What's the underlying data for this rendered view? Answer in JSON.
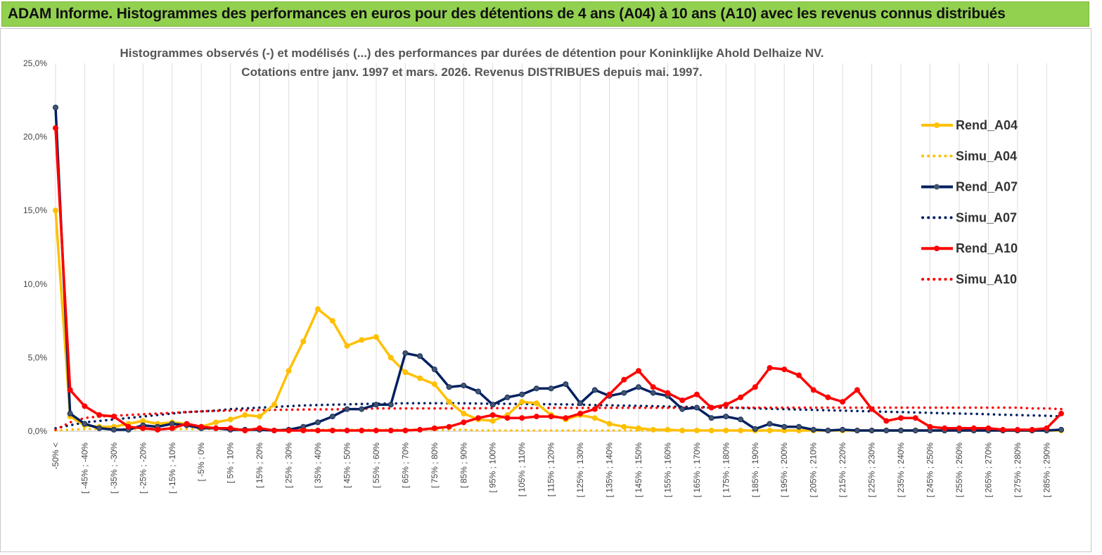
{
  "header": {
    "title": "ADAM Informe. Histogrammes des performances en euros pour des détentions de 4 ans (A04) à 10 ans (A10) avec les revenus connus distribués"
  },
  "chart_data": {
    "type": "line",
    "title_line1": "Histogrammes observés (-) et modélisés (...) des performances par durées de détention pour Koninklijke Ahold Delhaize NV.",
    "title_line2": "Cotations entre janv. 1997 et mars. 2026. Revenus DISTRIBUES depuis mai. 1997.",
    "ylim": [
      0,
      25
    ],
    "yticks": [
      "0,0%",
      "5,0%",
      "10,0%",
      "15,0%",
      "20,0%",
      "25,0%"
    ],
    "xticks": [
      "-50% <",
      "[ -45% ; -40%",
      "[ -35% ; -30%",
      "[ -25% ; -20%",
      "[ -15% ; -10%",
      "[ -5% ; 0%",
      "[ 5% ; 10%",
      "[ 15% ; 20%",
      "[ 25% ; 30%",
      "[ 35% ; 40%",
      "[ 45% ; 50%",
      "[ 55% ; 60%",
      "[ 65% ; 70%",
      "[ 75% ; 80%",
      "[ 85% ; 90%",
      "[ 95% ; 100%",
      "[ 105% ; 110%",
      "[ 115% ; 120%",
      "[ 125% ; 130%",
      "[ 135% ; 140%",
      "[ 145% ; 150%",
      "[ 155% ; 160%",
      "[ 165% ; 170%",
      "[ 175% ; 180%",
      "[ 185% ; 190%",
      "[ 195% ; 200%",
      "[ 205% ; 210%",
      "[ 215% ; 220%",
      "[ 225% ; 230%",
      "[ 235% ; 240%",
      "[ 245% ; 250%",
      "[ 255% ; 260%",
      "[ 265% ; 270%",
      "[ 275% ; 280%",
      "[ 285% ; 290%"
    ],
    "series": [
      {
        "name": "Rend_A04",
        "style": "solid",
        "color": "#ffc000",
        "values": [
          15.0,
          1.0,
          0.4,
          0.3,
          0.3,
          0.5,
          0.7,
          0.5,
          0.6,
          0.5,
          0.3,
          0.6,
          0.8,
          1.1,
          1.0,
          1.8,
          4.1,
          6.1,
          8.3,
          7.5,
          5.8,
          6.2,
          6.4,
          5.0,
          4.0,
          3.6,
          3.2,
          2.0,
          1.2,
          0.8,
          0.7,
          1.1,
          2.0,
          1.9,
          1.1,
          0.8,
          1.1,
          0.9,
          0.5,
          0.3,
          0.2,
          0.1,
          0.1,
          0.05,
          0.05,
          0.05,
          0.05,
          0.05,
          0.05,
          0.05,
          0.05,
          0.05,
          0.05,
          0.05,
          0.05,
          0.05,
          0.05,
          0.05,
          0.05,
          0.05,
          0.05,
          0.05,
          0.05,
          0.05,
          0.05,
          0.05,
          0.05,
          0.05,
          0.05,
          0.05
        ]
      },
      {
        "name": "Simu_A04",
        "style": "dotted",
        "color": "#ffc000",
        "values": [
          0.05,
          0.1,
          0.15,
          0.15,
          0.15,
          0.15,
          0.15,
          0.15,
          0.15,
          0.15,
          0.15,
          0.15,
          0.15,
          0.15,
          0.1,
          0.1,
          0.1,
          0.1,
          0.1,
          0.1,
          0.1,
          0.1,
          0.1,
          0.1,
          0.1,
          0.1,
          0.1,
          0.1,
          0.1,
          0.05,
          0.05,
          0.05,
          0.05,
          0.05,
          0.05,
          0.05,
          0.05,
          0.05,
          0.05,
          0.05,
          0.05,
          0.05,
          0.05,
          0.05,
          0.05,
          0.05,
          0.05,
          0.05,
          0.05,
          0.05,
          0.05,
          0.05,
          0.05,
          0.05,
          0.05,
          0.05,
          0.05,
          0.05,
          0.05,
          0.05,
          0.05,
          0.05,
          0.05,
          0.05,
          0.05,
          0.05,
          0.05,
          0.05,
          0.05,
          0.05
        ]
      },
      {
        "name": "Rend_A07",
        "style": "solid",
        "color": "#002060",
        "values": [
          22.0,
          1.2,
          0.5,
          0.2,
          0.1,
          0.1,
          0.4,
          0.3,
          0.5,
          0.4,
          0.2,
          0.2,
          0.1,
          0.1,
          0.1,
          0.05,
          0.1,
          0.3,
          0.6,
          1.0,
          1.5,
          1.5,
          1.8,
          1.8,
          5.3,
          5.1,
          4.2,
          3.0,
          3.1,
          2.7,
          1.8,
          2.3,
          2.5,
          2.9,
          2.9,
          3.2,
          1.9,
          2.8,
          2.4,
          2.6,
          3.0,
          2.6,
          2.4,
          1.5,
          1.6,
          0.9,
          1.0,
          0.8,
          0.15,
          0.5,
          0.3,
          0.3,
          0.1,
          0.05,
          0.1,
          0.05,
          0.05,
          0.05,
          0.05,
          0.05,
          0.05,
          0.05,
          0.05,
          0.05,
          0.05,
          0.05,
          0.05,
          0.05,
          0.05,
          0.1
        ]
      },
      {
        "name": "Simu_A07",
        "style": "dotted",
        "color": "#002060",
        "values": [
          0.2,
          0.4,
          0.6,
          0.7,
          0.8,
          0.9,
          1.0,
          1.1,
          1.2,
          1.3,
          1.35,
          1.4,
          1.5,
          1.55,
          1.6,
          1.65,
          1.7,
          1.75,
          1.78,
          1.8,
          1.82,
          1.85,
          1.87,
          1.88,
          1.9,
          1.9,
          1.9,
          1.9,
          1.9,
          1.88,
          1.87,
          1.86,
          1.85,
          1.84,
          1.83,
          1.82,
          1.8,
          1.78,
          1.76,
          1.74,
          1.72,
          1.7,
          1.68,
          1.66,
          1.64,
          1.62,
          1.6,
          1.58,
          1.55,
          1.52,
          1.5,
          1.47,
          1.45,
          1.42,
          1.4,
          1.37,
          1.35,
          1.32,
          1.3,
          1.27,
          1.25,
          1.22,
          1.2,
          1.18,
          1.15,
          1.12,
          1.1,
          1.07,
          1.05,
          1.0
        ]
      },
      {
        "name": "Rend_A10",
        "style": "solid",
        "color": "#ff0000",
        "values": [
          20.6,
          2.8,
          1.7,
          1.1,
          1.0,
          0.3,
          0.2,
          0.1,
          0.2,
          0.5,
          0.3,
          0.2,
          0.2,
          0.05,
          0.2,
          0.05,
          0.05,
          0.05,
          0.05,
          0.05,
          0.05,
          0.05,
          0.05,
          0.05,
          0.05,
          0.1,
          0.2,
          0.3,
          0.6,
          0.9,
          1.1,
          0.9,
          0.9,
          1.0,
          1.0,
          0.9,
          1.2,
          1.5,
          2.5,
          3.5,
          4.1,
          3.0,
          2.6,
          2.1,
          2.5,
          1.6,
          1.8,
          2.3,
          3.0,
          4.3,
          4.2,
          3.8,
          2.8,
          2.3,
          2.0,
          2.8,
          1.5,
          0.7,
          0.9,
          0.9,
          0.3,
          0.2,
          0.2,
          0.2,
          0.2,
          0.1,
          0.1,
          0.1,
          0.2,
          1.2
        ]
      },
      {
        "name": "Simu_A10",
        "style": "dotted",
        "color": "#ff0000",
        "values": [
          0.1,
          0.6,
          0.9,
          1.0,
          1.05,
          1.1,
          1.15,
          1.2,
          1.25,
          1.3,
          1.35,
          1.38,
          1.4,
          1.42,
          1.44,
          1.45,
          1.46,
          1.47,
          1.48,
          1.48,
          1.5,
          1.52,
          1.55,
          1.55,
          1.55,
          1.55,
          1.55,
          1.55,
          1.56,
          1.56,
          1.57,
          1.57,
          1.57,
          1.57,
          1.58,
          1.58,
          1.58,
          1.58,
          1.58,
          1.59,
          1.59,
          1.59,
          1.59,
          1.59,
          1.6,
          1.6,
          1.6,
          1.6,
          1.6,
          1.6,
          1.6,
          1.6,
          1.6,
          1.6,
          1.6,
          1.6,
          1.6,
          1.6,
          1.6,
          1.6,
          1.6,
          1.6,
          1.6,
          1.6,
          1.6,
          1.6,
          1.6,
          1.55,
          1.55,
          1.5
        ]
      }
    ]
  }
}
